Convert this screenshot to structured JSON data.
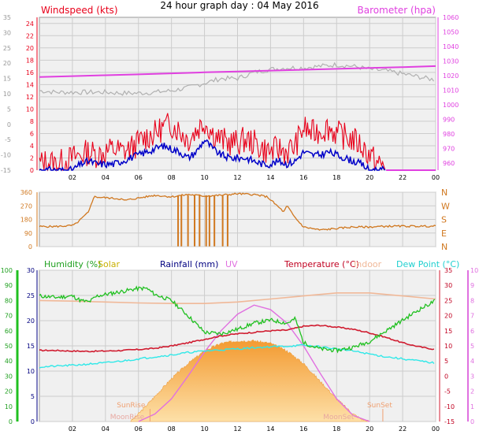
{
  "title": "24 hour graph day : 04 May 2016",
  "colors": {
    "wind": "#e8001a",
    "gust": "#0000c8",
    "baro": "#e040e0",
    "temp": "#d01c30",
    "humidity": "#20c020",
    "dew": "#30e8e8",
    "indoor": "#f0b898",
    "dir": "#d07820",
    "solar_fill": "#f5b040",
    "uv": "#e070e0",
    "grid": "#cccccc",
    "plot_bg": "#f0f0f0"
  },
  "chart_data": [
    {
      "type": "line",
      "id": "wind-baro",
      "labels": {
        "left": "Windspeed (kts)",
        "right": "Barometer (hpa)"
      },
      "x": {
        "ticks": [
          "02",
          "04",
          "06",
          "08",
          "10",
          "12",
          "14",
          "16",
          "18",
          "20",
          "22",
          "00"
        ],
        "range": [
          0,
          24
        ]
      },
      "y_outer_left": {
        "ticks": [
          "-15",
          "-10",
          "-5",
          "0",
          "5",
          "10",
          "15",
          "20",
          "25",
          "30",
          "35"
        ]
      },
      "y_left": {
        "ticks": [
          "0",
          "2",
          "4",
          "6",
          "8",
          "10",
          "12",
          "14",
          "16",
          "18",
          "20",
          "22",
          "24"
        ],
        "range": [
          0,
          25
        ]
      },
      "y_right": {
        "ticks": [
          "960",
          "970",
          "980",
          "990",
          "1000",
          "1010",
          "1020",
          "1030",
          "1040",
          "1050",
          "1060"
        ],
        "range": [
          955,
          1060
        ]
      },
      "series": [
        {
          "key": "baro",
          "axis": "right",
          "x": [
            0,
            2,
            4,
            6,
            8,
            10,
            12,
            14,
            16,
            18,
            20,
            22,
            24
          ],
          "values": [
            1019,
            1019.6,
            1020.2,
            1020.8,
            1021.5,
            1022.2,
            1022.8,
            1023.4,
            1024,
            1024.6,
            1025.2,
            1025.8,
            1026.5
          ]
        },
        {
          "key": "outer",
          "axis": "outer_left",
          "x": [
            0,
            1,
            2,
            3,
            4,
            5,
            6,
            7,
            8,
            9,
            10,
            11,
            12,
            13,
            14,
            15,
            16,
            17,
            18,
            19,
            20,
            21,
            22,
            23,
            24
          ],
          "values": [
            11,
            10.5,
            10.5,
            10.5,
            10.5,
            10.2,
            10.2,
            10.5,
            11,
            12,
            13.5,
            15,
            15,
            17,
            18,
            18.5,
            18.5,
            19,
            19.5,
            19,
            18,
            17.5,
            16.5,
            15.5,
            14.5
          ]
        },
        {
          "key": "wind",
          "axis": "left",
          "x": [
            0,
            0.5,
            1,
            1.5,
            2,
            2.5,
            3,
            3.5,
            4,
            4.5,
            5,
            5.5,
            6,
            6.5,
            7,
            7.5,
            8,
            8.5,
            9,
            9.5,
            10,
            10.5,
            11,
            11.5,
            12,
            12.5,
            13,
            13.5,
            14,
            14.5,
            15,
            15.5,
            16,
            16.5,
            17,
            17.5,
            18,
            18.5,
            19,
            19.5,
            20,
            20.5,
            21
          ],
          "values": [
            1,
            1.5,
            1,
            1.5,
            2,
            2.5,
            3,
            2.5,
            3,
            3.5,
            3,
            3.5,
            4.5,
            5.5,
            6,
            7,
            7.5,
            6.5,
            5,
            6.5,
            8,
            6,
            5,
            4.5,
            4.5,
            5,
            4.5,
            3.5,
            3,
            3.5,
            3,
            4,
            7,
            6,
            6.5,
            7,
            6,
            5.5,
            5,
            4,
            2.5,
            1,
            0.5
          ]
        },
        {
          "key": "gust",
          "axis": "left",
          "x": [
            0,
            0.5,
            1,
            1.5,
            2,
            2.5,
            3,
            3.5,
            4,
            4.5,
            5,
            5.5,
            6,
            6.5,
            7,
            7.5,
            8,
            8.5,
            9,
            9.5,
            10,
            10.5,
            11,
            11.5,
            12,
            12.5,
            13,
            13.5,
            14,
            14.5,
            15,
            15.5,
            16,
            16.5,
            17,
            17.5,
            18,
            18.5,
            19,
            19.5,
            20,
            20.5,
            21
          ],
          "values": [
            0,
            0,
            0,
            0,
            0,
            1,
            1.5,
            1,
            1,
            1,
            1.5,
            2,
            2.5,
            3,
            3.5,
            4,
            3.5,
            3,
            2,
            3,
            5,
            3.5,
            2.5,
            2,
            2,
            2,
            1.5,
            1,
            1,
            1.5,
            1,
            1.5,
            3,
            2.5,
            2.5,
            3,
            2.5,
            2,
            1.5,
            1,
            0,
            0,
            0
          ]
        }
      ]
    },
    {
      "type": "line",
      "id": "direction",
      "y": {
        "ticks": [
          "0",
          "90",
          "180",
          "270",
          "360"
        ],
        "range": [
          0,
          360
        ]
      },
      "y_right": {
        "ticks": [
          "N",
          "E",
          "S",
          "W",
          "N"
        ]
      },
      "x": {
        "range": [
          0,
          24
        ]
      },
      "series": [
        {
          "key": "dir",
          "x": [
            0,
            1,
            2,
            2.2,
            3,
            3.1,
            3.3,
            5,
            5.1,
            7,
            8,
            9,
            10,
            11,
            12,
            13,
            13.8,
            14,
            14.8,
            15,
            15.3,
            15.5,
            16,
            17,
            18,
            19,
            20,
            21,
            22,
            23,
            24
          ],
          "values": [
            133,
            133,
            140,
            150,
            230,
            270,
            330,
            315,
            305,
            340,
            330,
            345,
            335,
            340,
            350,
            345,
            330,
            310,
            230,
            270,
            220,
            190,
            130,
            110,
            120,
            130,
            130,
            135,
            135,
            135,
            135
          ]
        }
      ],
      "spikes_hours": [
        8.4,
        8.6,
        9,
        9.4,
        9.7,
        10.1,
        10.3,
        10.6,
        11.1,
        11.4
      ]
    },
    {
      "type": "line",
      "id": "temp-humidity",
      "labels": {
        "humidity": "Humidity (%)",
        "solar": "Solar",
        "rain": "Rainfall (mm)",
        "uv": "UV",
        "temp": "Temperature (°C)",
        "indoor": "Indoor",
        "dew": "Dew Point (°C)"
      },
      "x": {
        "ticks": [
          "02",
          "04",
          "06",
          "08",
          "10",
          "12",
          "14",
          "16",
          "18",
          "20",
          "22",
          "00"
        ],
        "range": [
          0,
          24
        ]
      },
      "y_humidity": {
        "ticks": [
          "0",
          "10",
          "20",
          "30",
          "40",
          "50",
          "60",
          "70",
          "80",
          "90",
          "100"
        ],
        "range": [
          0,
          100
        ]
      },
      "y_rain": {
        "ticks": [
          "0",
          "5",
          "10",
          "15",
          "20",
          "25",
          "30"
        ],
        "range": [
          0,
          30
        ]
      },
      "y_temp": {
        "ticks": [
          "-15",
          "-10",
          "-5",
          "0",
          "5",
          "10",
          "15",
          "20",
          "25",
          "30",
          "35"
        ],
        "range": [
          -15,
          35
        ]
      },
      "y_uv": {
        "ticks": [
          "0",
          "1",
          "2",
          "3",
          "4",
          "5",
          "6",
          "7",
          "8",
          "9",
          "10"
        ],
        "range": [
          0,
          10
        ]
      },
      "series": [
        {
          "key": "humidity",
          "axis": "humidity",
          "x": [
            0,
            1,
            2,
            2.5,
            3,
            3.5,
            4,
            5,
            6,
            6.5,
            7,
            8,
            9,
            10,
            11,
            12,
            13,
            14,
            15,
            15.5,
            16,
            17,
            18,
            19,
            20,
            21,
            22,
            23,
            24
          ],
          "values": [
            83,
            82,
            83,
            80,
            79,
            83,
            84,
            86,
            88,
            88,
            84,
            80,
            70,
            59,
            58,
            61,
            65,
            67,
            65,
            68,
            52,
            48,
            47,
            49,
            53,
            60,
            67,
            74,
            80
          ]
        },
        {
          "key": "indoor",
          "axis": "temp",
          "x": [
            0,
            2,
            4,
            6,
            8,
            10,
            12,
            14,
            16,
            18,
            20,
            22,
            24
          ],
          "values": [
            25,
            24.8,
            24.5,
            24.2,
            24,
            24,
            24.5,
            25.5,
            26.5,
            27.5,
            27.5,
            26.5,
            25.5
          ]
        },
        {
          "key": "temp",
          "axis": "temp",
          "x": [
            0,
            1,
            2,
            3,
            4,
            5,
            6,
            7,
            8,
            9,
            10,
            11,
            12,
            13,
            14,
            15,
            16,
            17,
            18,
            19,
            20,
            21,
            22,
            23,
            24
          ],
          "values": [
            8.5,
            8.5,
            8.3,
            8.2,
            8.3,
            8.5,
            8.8,
            9.2,
            10,
            11,
            12.2,
            13.3,
            14,
            14.5,
            15,
            15.2,
            16.5,
            16.8,
            16.2,
            15.5,
            14.3,
            12.8,
            11,
            9.7,
            8.8
          ]
        },
        {
          "key": "dew",
          "axis": "temp",
          "x": [
            0,
            1,
            2,
            3,
            4,
            5,
            6,
            7,
            8,
            9,
            10,
            11,
            12,
            13,
            14,
            15,
            16,
            17,
            18,
            19,
            20,
            21,
            22,
            23,
            24
          ],
          "values": [
            3,
            3.3,
            3.6,
            4,
            4.4,
            5,
            5.7,
            6.4,
            7,
            7.8,
            8.3,
            8.7,
            9,
            9.4,
            9.7,
            9.9,
            10.2,
            9.7,
            9,
            8.3,
            7.3,
            6.4,
            5.7,
            5,
            4.3
          ]
        },
        {
          "key": "solar",
          "axis": "rain",
          "x": [
            5.5,
            6,
            7,
            8,
            9,
            10,
            11,
            12,
            13,
            14,
            15,
            16,
            17,
            18,
            19,
            19.5,
            20
          ],
          "values": [
            0,
            1.5,
            5,
            8.5,
            11.5,
            14,
            15.5,
            16,
            16,
            15.5,
            14,
            11.5,
            8,
            4.5,
            1.5,
            0.5,
            0
          ]
        },
        {
          "key": "uv",
          "axis": "uv",
          "x": [
            6,
            7,
            8,
            9,
            10,
            11,
            12,
            13,
            14,
            15,
            16,
            17,
            18,
            19,
            20
          ],
          "values": [
            0,
            0.5,
            1.5,
            3,
            4.6,
            6,
            7.1,
            7.7,
            7.4,
            6.5,
            5,
            3.2,
            1.5,
            0.4,
            0
          ]
        }
      ],
      "annotations": {
        "sunrise": "SunRise",
        "sunset": "SunSet",
        "moonrise": "MoonRise",
        "moonset": "MoonSet"
      },
      "sunrise_hour": 6.7,
      "sunset_hour": 20.8,
      "moonrise_hour": 6.5,
      "moonset_hour": 19.2
    }
  ]
}
